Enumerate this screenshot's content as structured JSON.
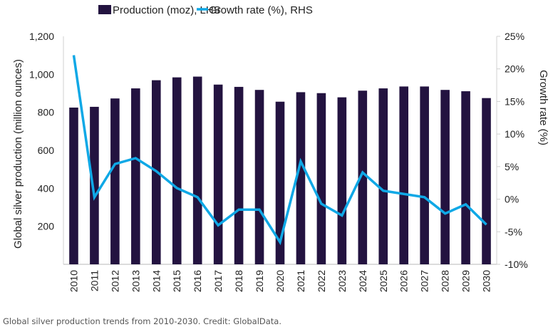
{
  "chart_data": {
    "type": "bar+line",
    "categories": [
      "2010",
      "2011",
      "2012",
      "2013",
      "2014",
      "2015",
      "2016",
      "2017",
      "2018",
      "2019",
      "2020",
      "2021",
      "2022",
      "2023",
      "2024",
      "2025",
      "2026",
      "2027",
      "2028",
      "2029",
      "2030"
    ],
    "series": [
      {
        "name": "Production (moz), LHS",
        "type": "bar",
        "axis": "left",
        "color": "#231340",
        "values": [
          825,
          829,
          873,
          926,
          969,
          984,
          988,
          946,
          934,
          918,
          856,
          906,
          901,
          879,
          914,
          926,
          936,
          936,
          918,
          911,
          875
        ]
      },
      {
        "name": "Growth rate (%), RHS",
        "type": "line",
        "axis": "right",
        "color": "#0fa8e6",
        "values": [
          22.1,
          0.3,
          5.4,
          6.3,
          4.3,
          1.7,
          0.3,
          -4.0,
          -1.6,
          -1.6,
          -6.6,
          5.8,
          -0.7,
          -2.5,
          4.1,
          1.3,
          0.8,
          0.3,
          -2.2,
          -0.8,
          -3.9
        ]
      }
    ],
    "ylabel": "Global silver production (million ounces)",
    "y2label": "Growth rate (%)",
    "ylim": [
      0,
      1200
    ],
    "yticks": [
      "",
      "200",
      "400",
      "600",
      "800",
      "1,000",
      "1,200"
    ],
    "y2lim": [
      -10,
      25
    ],
    "y2ticks": [
      "-10%",
      "-5%",
      "0%",
      "5%",
      "10%",
      "15%",
      "20%",
      "25%"
    ],
    "legend": "top",
    "grid": false
  },
  "caption": "Global silver production trends from 2010-2030. Credit: GlobalData."
}
